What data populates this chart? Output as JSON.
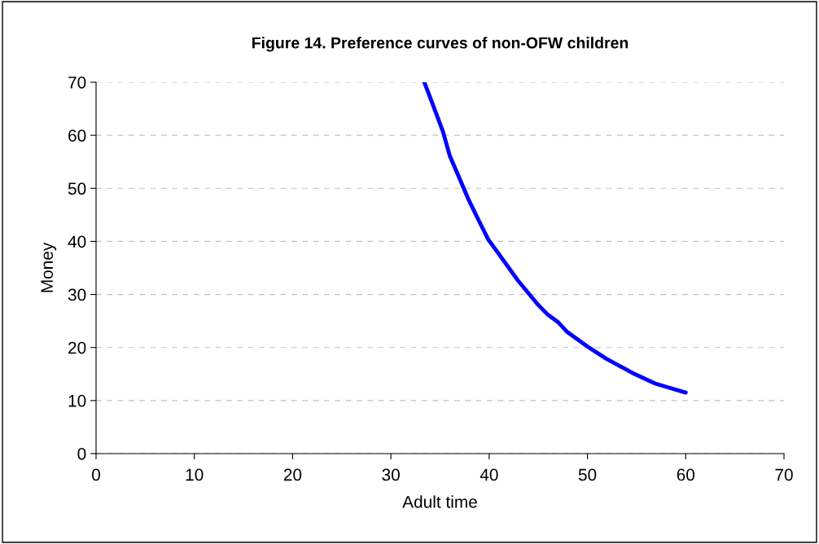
{
  "chart_data": {
    "type": "line",
    "title": "Figure 14. Preference curves of non-OFW children",
    "xlabel": "Adult time",
    "ylabel": "Money",
    "series": [
      {
        "color": "#0000ff",
        "x": [
          33.4,
          34.0,
          35.3,
          36.0,
          37.9,
          38.9,
          39.9,
          41.0,
          42.9,
          44.9,
          45.9,
          47.0,
          47.9,
          50.0,
          51.9,
          54.8,
          56.9,
          60.0
        ],
        "values": [
          70,
          67.1,
          60.7,
          56.1,
          47.9,
          44.1,
          40.4,
          37.6,
          32.7,
          28.2,
          26.3,
          24.8,
          23.0,
          20.2,
          17.9,
          15.0,
          13.2,
          11.5
        ]
      }
    ],
    "xlim": [
      0,
      70
    ],
    "xticks": [
      0,
      10,
      20,
      30,
      40,
      50,
      60,
      70
    ],
    "ylim": [
      0,
      70
    ],
    "yticks": [
      0,
      10,
      20,
      30,
      40,
      50,
      60,
      70
    ],
    "grid": "y",
    "legend": false,
    "marker": "none",
    "line_style": "solid"
  }
}
